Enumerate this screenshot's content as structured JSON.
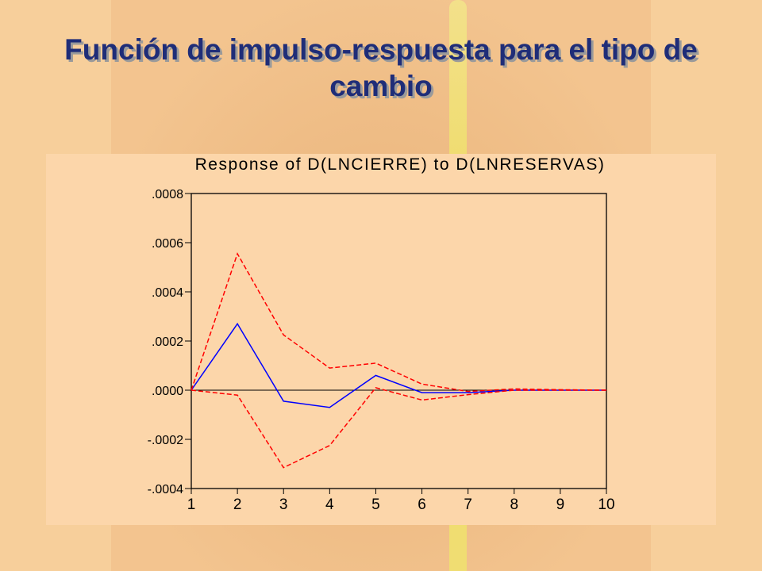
{
  "slide": {
    "title": "Función de impulso-respuesta para el tipo de cambio"
  },
  "chart_data": {
    "type": "line",
    "title": "Response of D(LNCIERRE) to D(LNRESERVAS)",
    "xlabel": "",
    "ylabel": "",
    "x": [
      1,
      2,
      3,
      4,
      5,
      6,
      7,
      8,
      9,
      10
    ],
    "ylim": [
      -0.0004,
      0.0008
    ],
    "y_ticks": [
      ".0008",
      ".0006",
      ".0004",
      ".0002",
      ".0000",
      "-.0002",
      "-.0004"
    ],
    "y_tick_values": [
      0.0008,
      0.0006,
      0.0004,
      0.0002,
      0.0,
      -0.0002,
      -0.0004
    ],
    "grid": false,
    "zero_line": true,
    "series": [
      {
        "values": [
          0.0,
          0.00027,
          -4.5e-05,
          -7e-05,
          6e-05,
          -1e-05,
          -1e-05,
          0.0,
          0.0,
          0.0
        ],
        "color": "#0000ff",
        "dash": "solid"
      },
      {
        "values": [
          0.0,
          0.000555,
          0.000225,
          9e-05,
          0.00011,
          2.5e-05,
          -5e-06,
          5e-06,
          2e-06,
          0.0
        ],
        "color": "#ff0000",
        "dash": "dashed"
      },
      {
        "values": [
          0.0,
          -2e-05,
          -0.000315,
          -0.000225,
          1e-05,
          -4e-05,
          -1.8e-05,
          0.0,
          0.0,
          0.0
        ],
        "color": "#ff0000",
        "dash": "dashed"
      }
    ]
  }
}
